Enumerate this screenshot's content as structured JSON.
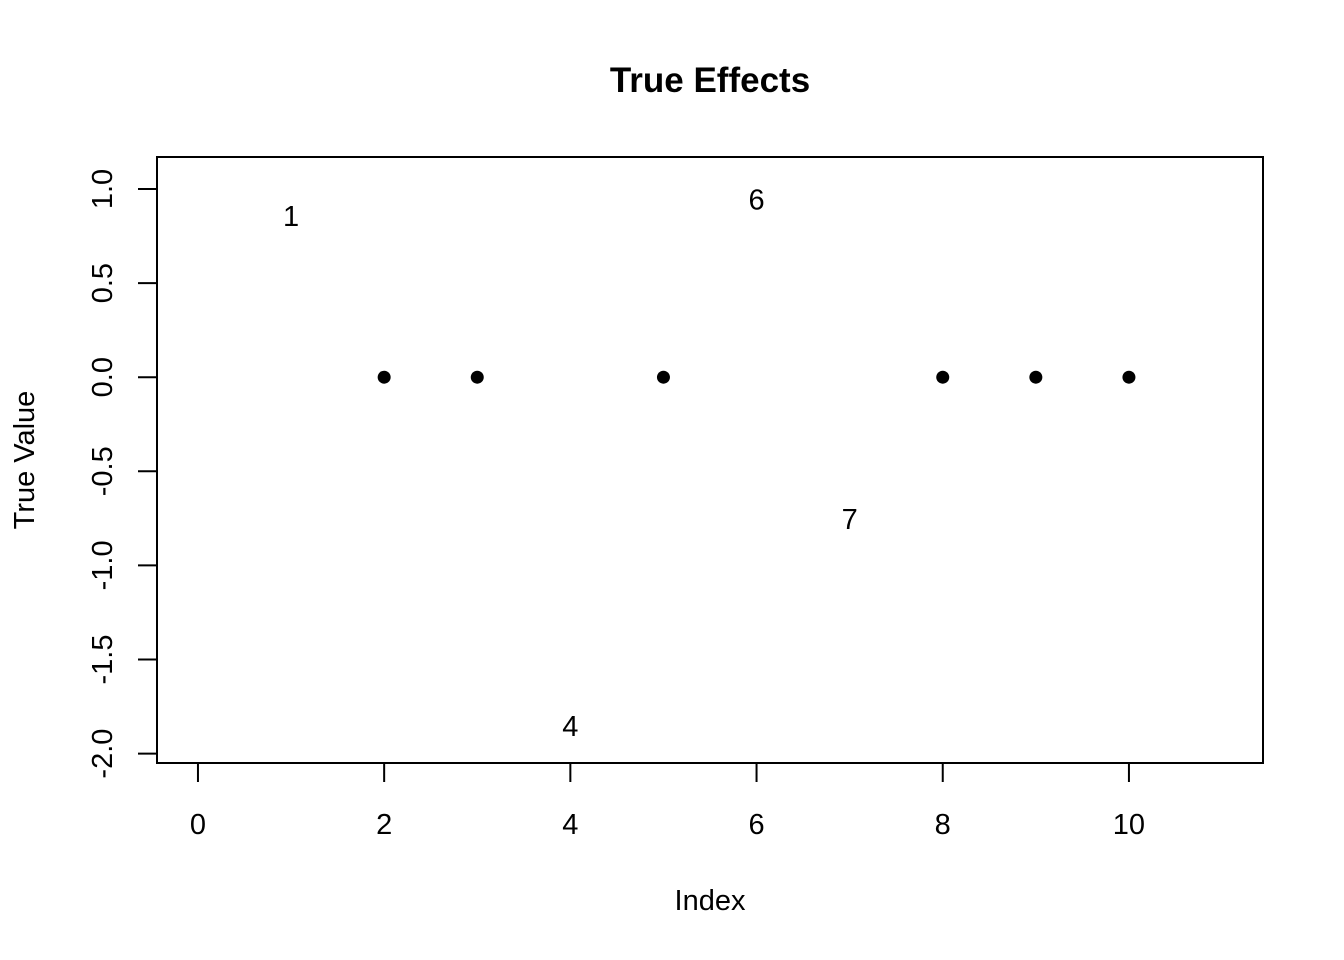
{
  "chart_data": {
    "type": "scatter",
    "title": "True Effects",
    "xlabel": "Index",
    "ylabel": "True Value",
    "xlim": [
      -0.44,
      11.44
    ],
    "ylim": [
      -2.05,
      1.17
    ],
    "x_ticks": [
      {
        "value": 0,
        "label": "0"
      },
      {
        "value": 2,
        "label": "2"
      },
      {
        "value": 4,
        "label": "4"
      },
      {
        "value": 6,
        "label": "6"
      },
      {
        "value": 8,
        "label": "8"
      },
      {
        "value": 10,
        "label": "10"
      }
    ],
    "y_ticks": [
      {
        "value": -2.0,
        "label": "-2.0"
      },
      {
        "value": -1.5,
        "label": "-1.5"
      },
      {
        "value": -1.0,
        "label": "-1.0"
      },
      {
        "value": -0.5,
        "label": "-0.5"
      },
      {
        "value": 0.0,
        "label": "0.0"
      },
      {
        "value": 0.5,
        "label": "0.5"
      },
      {
        "value": 1.0,
        "label": "1.0"
      }
    ],
    "grid": false,
    "points": [
      {
        "x": 2,
        "y": 0
      },
      {
        "x": 3,
        "y": 0
      },
      {
        "x": 5,
        "y": 0
      },
      {
        "x": 8,
        "y": 0
      },
      {
        "x": 9,
        "y": 0
      },
      {
        "x": 10,
        "y": 0
      }
    ],
    "text_labels": [
      {
        "x": 1,
        "y": 0.85,
        "label": "1"
      },
      {
        "x": 4,
        "y": -1.86,
        "label": "4"
      },
      {
        "x": 6,
        "y": 0.94,
        "label": "6"
      },
      {
        "x": 7,
        "y": -0.76,
        "label": "7"
      }
    ],
    "point_color": "#000000"
  }
}
